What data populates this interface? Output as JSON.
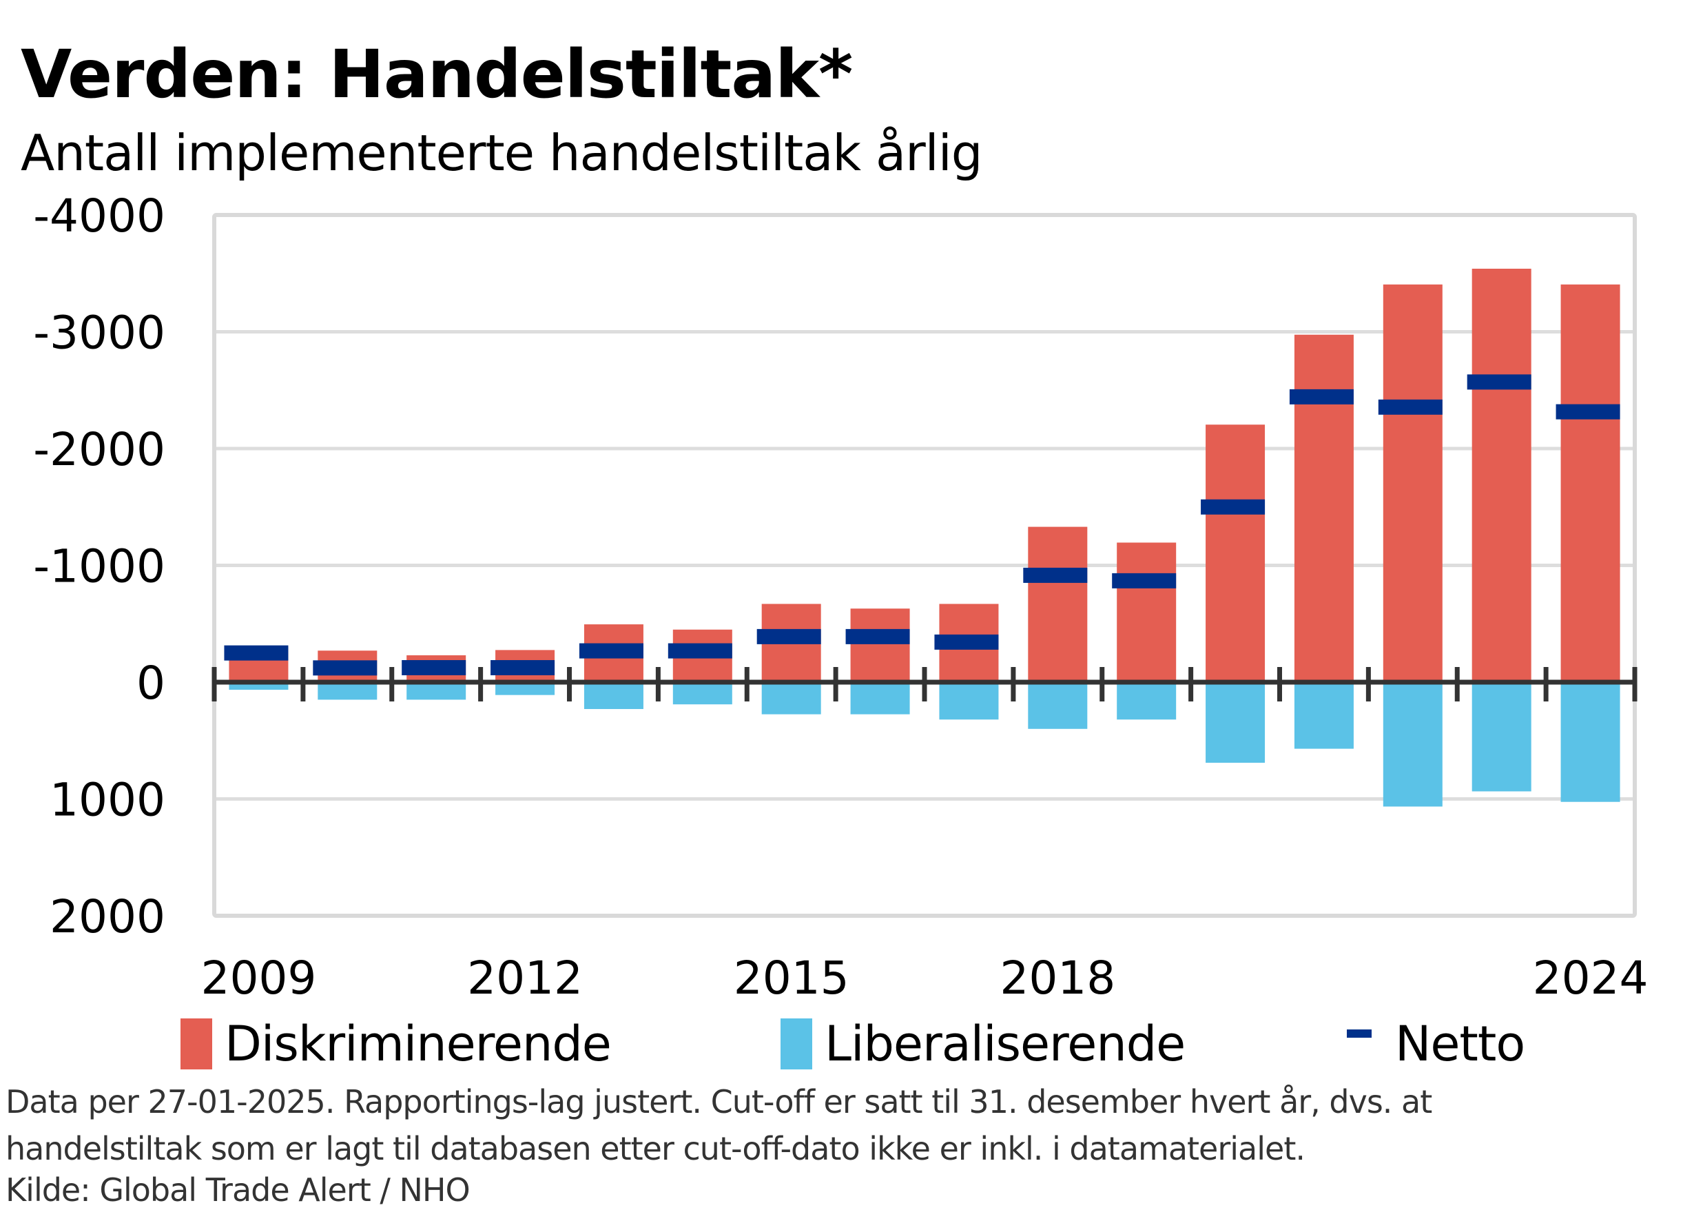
{
  "chart_data": {
    "type": "bar",
    "title": "Verden: Handelstiltak*",
    "subtitle": "Antall implementerte handelstiltak årlig",
    "xlabel": "",
    "ylabel": "",
    "ylim": [
      -4000,
      2000
    ],
    "y_inverted_sign_display": true,
    "yticks": [
      -4000,
      -3000,
      -2000,
      -1000,
      0,
      1000,
      2000
    ],
    "ytick_labels": [
      "-4000",
      "-3000",
      "-2000",
      "-1000",
      "0",
      "1000",
      "2000"
    ],
    "categories": [
      "2009",
      "2010",
      "2011",
      "2012",
      "2013",
      "2014",
      "2015",
      "2016",
      "2017",
      "2018",
      "2019",
      "2020",
      "2021",
      "2022",
      "2023",
      "2024"
    ],
    "xtick_labels": [
      {
        "category": "2009",
        "label": "2009"
      },
      {
        "category": "2012",
        "label": "2012"
      },
      {
        "category": "2015",
        "label": "2015"
      },
      {
        "category": "2018",
        "label": "2018"
      },
      {
        "category": "2024",
        "label": "2024"
      }
    ],
    "grid": true,
    "legend_position": "bottom",
    "series": [
      {
        "name": "Diskriminerende",
        "kind": "bar",
        "color": "#E45E52",
        "values": [
          -300,
          -270,
          -230,
          -275,
          -495,
          -450,
          -670,
          -630,
          -670,
          -1330,
          -1195,
          -2205,
          -2975,
          -3405,
          -3540,
          -3405
        ]
      },
      {
        "name": "Liberaliserende",
        "kind": "bar",
        "color": "#5BC2E7",
        "values": [
          65,
          150,
          150,
          110,
          230,
          190,
          275,
          275,
          320,
          400,
          320,
          690,
          570,
          1065,
          935,
          1025
        ]
      },
      {
        "name": "Netto",
        "kind": "marker",
        "color": "#00308A",
        "values": [
          -250,
          -122,
          -124,
          -124,
          -268,
          -268,
          -390,
          -390,
          -343,
          -915,
          -868,
          -1500,
          -2443,
          -2355,
          -2570,
          -2315
        ]
      }
    ]
  },
  "legend": {
    "items": [
      {
        "label": "Diskriminerende",
        "color": "#E45E52"
      },
      {
        "label": "Liberaliserende",
        "color": "#5BC2E7"
      },
      {
        "label": "Netto",
        "color": "#00308A"
      }
    ]
  },
  "footer": {
    "note_line1": "Data per 27-01-2025.   Rapportings-lag justert. Cut-off er satt til 31. desember hvert år, dvs. at",
    "note_line2": "handelstiltak som er lagt til databasen etter cut-off-dato ikke er inkl. i datamaterialet.",
    "source": "Kilde: Global Trade Alert / NHO"
  }
}
